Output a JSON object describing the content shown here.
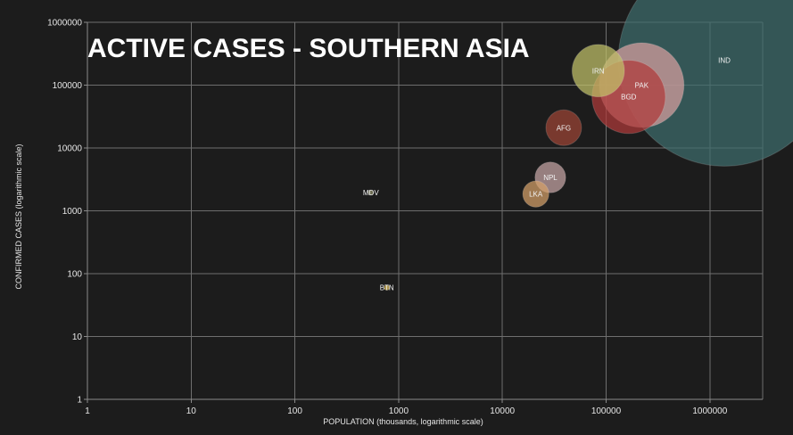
{
  "chart_data": {
    "type": "scatter",
    "title": "ACTIVE CASES - SOUTHERN ASIA",
    "xlabel": "POPULATION (thousands, logarithmic scale)",
    "ylabel": "CONFIRMED CASES (logarithmic scale)",
    "x_scale": "log",
    "y_scale": "log",
    "xlim": [
      1,
      3000000
    ],
    "ylim": [
      1,
      1000000
    ],
    "x_ticks": [
      "1",
      "10",
      "100",
      "1000",
      "10000",
      "100000",
      "1000000"
    ],
    "y_ticks": [
      "1",
      "10",
      "100",
      "1000",
      "10000",
      "100000",
      "1000000"
    ],
    "grid": true,
    "points": [
      {
        "label": "IND",
        "x": 1380000,
        "y": 250000,
        "size": 1380000,
        "color": "#3f6e6e"
      },
      {
        "label": "IRN",
        "x": 84000,
        "y": 170000,
        "size": 84000,
        "color": "#c2c26a"
      },
      {
        "label": "PAK",
        "x": 220000,
        "y": 100000,
        "size": 220000,
        "color": "#d89f9f"
      },
      {
        "label": "BGD",
        "x": 165000,
        "y": 65000,
        "size": 165000,
        "color": "#b03a3a"
      },
      {
        "label": "AFG",
        "x": 39000,
        "y": 21000,
        "size": 39000,
        "color": "#9e4536"
      },
      {
        "label": "NPL",
        "x": 29000,
        "y": 3400,
        "size": 29000,
        "color": "#c7a6a6"
      },
      {
        "label": "LKA",
        "x": 21000,
        "y": 1850,
        "size": 21000,
        "color": "#d6a16a"
      },
      {
        "label": "MDV",
        "x": 540,
        "y": 1950,
        "size": 540,
        "color": "#8e8e6a"
      },
      {
        "label": "BTN",
        "x": 770,
        "y": 60,
        "size": 770,
        "color": "#e0c060"
      }
    ]
  }
}
